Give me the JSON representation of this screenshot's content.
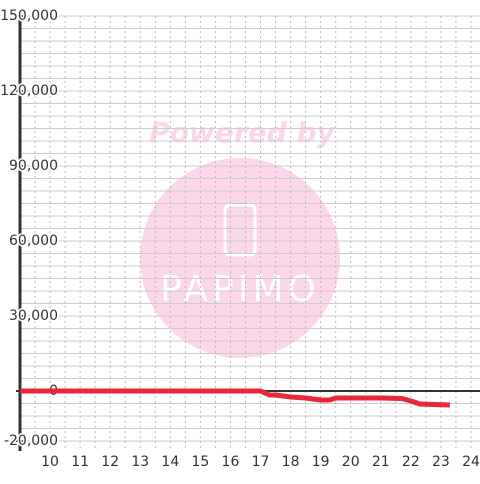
{
  "chart_data": {
    "type": "line",
    "watermark": {
      "title": "Powered by",
      "brand": "PAPIMO"
    },
    "x": [
      9,
      17,
      17.3,
      17.5,
      18,
      18.5,
      19,
      19.3,
      19.5,
      20,
      21,
      21.7,
      22,
      22.3,
      23.3
    ],
    "series": [
      {
        "color": "#e8283a",
        "values": [
          0,
          0,
          -1600,
          -1600,
          -2400,
          -2800,
          -3600,
          -3600,
          -2800,
          -2800,
          -2800,
          -3000,
          -4000,
          -5200,
          -5600
        ]
      }
    ],
    "xlim": [
      9,
      24.3
    ],
    "xticks": [
      10,
      11,
      12,
      13,
      14,
      15,
      16,
      17,
      18,
      19,
      20,
      21,
      22,
      23,
      24
    ],
    "ylim": [
      -24000,
      150000
    ],
    "yticks": [
      {
        "value": -20000,
        "label": "-20,000"
      },
      0,
      {
        "value": 30000,
        "label": "30,000"
      },
      {
        "value": 60000,
        "label": "60,000"
      },
      {
        "value": 90000,
        "label": "90,000"
      },
      {
        "value": 120000,
        "label": "120,000"
      },
      {
        "value": 150000,
        "label": "150,000"
      }
    ],
    "y_grid": [
      -20000,
      -15000,
      -10000,
      -5000,
      5000,
      10000,
      15000,
      20000,
      25000,
      30000,
      35000,
      40000,
      45000,
      50000,
      55000,
      60000,
      65000,
      70000,
      75000,
      80000,
      85000,
      90000,
      95000,
      100000,
      105000,
      110000,
      115000,
      120000,
      125000,
      130000,
      135000,
      140000,
      145000,
      150000
    ],
    "x_grid": [
      9.5,
      10,
      10.5,
      11,
      11.5,
      12,
      12.5,
      13,
      13.5,
      14,
      14.5,
      15,
      15.5,
      16,
      16.5,
      17,
      17.5,
      18,
      18.5,
      19,
      19.5,
      20,
      20.5,
      21,
      21.5,
      22,
      22.5,
      23,
      23.5,
      24
    ],
    "grid": true
  }
}
